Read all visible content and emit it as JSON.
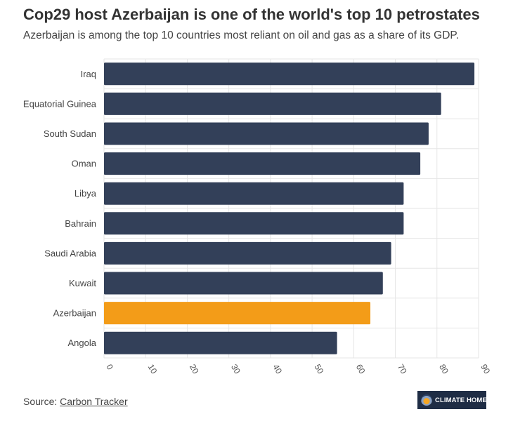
{
  "title": "Cop29 host Azerbaijan is one of the world's top 10 petrostates",
  "subtitle": "Azerbaijan is among the top 10 countries most reliant on oil and gas as a share of its GDP.",
  "source": {
    "prefix": "Source: ",
    "link_text": "Carbon Tracker"
  },
  "logo": {
    "text": "CLIMATE HOME",
    "icon": "globe-logo-icon"
  },
  "colors": {
    "bar": "#334059",
    "highlight": "#f39c18",
    "grid": "#e6e6e6"
  },
  "chart_data": {
    "type": "bar",
    "orientation": "horizontal",
    "categories": [
      "Iraq",
      "Equatorial Guinea",
      "South Sudan",
      "Oman",
      "Libya",
      "Bahrain",
      "Saudi Arabia",
      "Kuwait",
      "Azerbaijan",
      "Angola"
    ],
    "values": [
      89,
      81,
      78,
      76,
      72,
      72,
      69,
      67,
      64,
      56
    ],
    "highlight": "Azerbaijan",
    "xlim": [
      0,
      90
    ],
    "xticks": [
      0,
      10,
      20,
      30,
      40,
      50,
      60,
      70,
      80,
      90
    ],
    "grid": true,
    "xlabel": "",
    "ylabel": ""
  }
}
